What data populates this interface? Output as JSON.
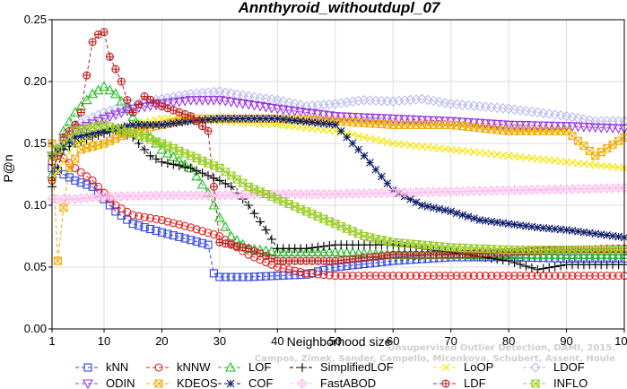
{
  "chart_data": {
    "type": "line",
    "title": "Annthyroid_withoutdupl_07",
    "xlabel": "Neighborhood size",
    "ylabel": "P@n",
    "xlim": [
      1,
      100
    ],
    "ylim": [
      0,
      0.25
    ],
    "xticks": [
      1,
      10,
      20,
      30,
      40,
      50,
      60,
      70,
      80,
      90,
      100
    ],
    "yticks": [
      0.0,
      0.05,
      0.1,
      0.15,
      0.2,
      0.25
    ],
    "xtick_labels": [
      "1",
      "10",
      "20",
      "30",
      "40",
      "50",
      "60",
      "70",
      "80",
      "90",
      "100"
    ],
    "ytick_labels": [
      "0.00",
      "0.05",
      "0.10",
      "0.15",
      "0.20",
      "0.25"
    ],
    "grid": true,
    "legend_position": "bottom",
    "series": [
      {
        "name": "kNN",
        "color": "#3344dd",
        "marker": "square",
        "dash": "4,3",
        "x": [
          1,
          2,
          3,
          5,
          8,
          10,
          12,
          15,
          20,
          25,
          28,
          29,
          30,
          35,
          40,
          45,
          50,
          60,
          70,
          80,
          90,
          100
        ],
        "values": [
          0.13,
          0.128,
          0.125,
          0.12,
          0.115,
          0.105,
          0.095,
          0.085,
          0.078,
          0.072,
          0.068,
          0.045,
          0.042,
          0.042,
          0.043,
          0.044,
          0.05,
          0.055,
          0.058,
          0.058,
          0.057,
          0.057
        ]
      },
      {
        "name": "kNNW",
        "color": "#dd2222",
        "marker": "circle",
        "dash": "4,3",
        "x": [
          1,
          2,
          3,
          5,
          8,
          10,
          12,
          15,
          20,
          25,
          30,
          35,
          40,
          45,
          50,
          60,
          70,
          80,
          90,
          100
        ],
        "values": [
          0.135,
          0.14,
          0.138,
          0.13,
          0.12,
          0.11,
          0.1,
          0.092,
          0.088,
          0.082,
          0.075,
          0.06,
          0.05,
          0.045,
          0.043,
          0.043,
          0.043,
          0.043,
          0.043,
          0.043
        ]
      },
      {
        "name": "LOF",
        "color": "#22bb22",
        "marker": "triangle",
        "dash": "4,3",
        "x": [
          1,
          2,
          3,
          5,
          8,
          10,
          12,
          14,
          16,
          18,
          20,
          25,
          28,
          30,
          32,
          35,
          40,
          50,
          60,
          70,
          80,
          90,
          100
        ],
        "values": [
          0.125,
          0.145,
          0.16,
          0.175,
          0.19,
          0.196,
          0.19,
          0.178,
          0.165,
          0.155,
          0.145,
          0.13,
          0.11,
          0.09,
          0.075,
          0.065,
          0.062,
          0.062,
          0.06,
          0.06,
          0.06,
          0.06,
          0.06
        ]
      },
      {
        "name": "SimplifiedLOF",
        "color": "#000000",
        "marker": "plus",
        "dash": "4,3",
        "x": [
          1,
          2,
          3,
          5,
          8,
          10,
          12,
          15,
          18,
          20,
          25,
          30,
          32,
          35,
          38,
          40,
          45,
          50,
          60,
          70,
          80,
          85,
          90,
          100
        ],
        "values": [
          0.115,
          0.13,
          0.145,
          0.15,
          0.155,
          0.158,
          0.16,
          0.155,
          0.14,
          0.135,
          0.13,
          0.12,
          0.115,
          0.1,
          0.08,
          0.065,
          0.065,
          0.068,
          0.068,
          0.062,
          0.055,
          0.048,
          0.052,
          0.052
        ]
      },
      {
        "name": "LoOP",
        "color": "#f5e600",
        "marker": "x",
        "dash": "4,3",
        "x": [
          1,
          5,
          10,
          15,
          20,
          25,
          30,
          40,
          50,
          60,
          70,
          80,
          90,
          100
        ],
        "values": [
          0.12,
          0.15,
          0.16,
          0.165,
          0.17,
          0.17,
          0.168,
          0.165,
          0.16,
          0.15,
          0.145,
          0.14,
          0.135,
          0.13
        ]
      },
      {
        "name": "LDOF",
        "color": "#bbbbf0",
        "marker": "diamond",
        "dash": "4,3",
        "x": [
          1,
          5,
          10,
          15,
          20,
          25,
          30,
          35,
          40,
          45,
          50,
          55,
          60,
          65,
          70,
          75,
          80,
          85,
          90,
          95,
          100
        ],
        "values": [
          0.14,
          0.165,
          0.175,
          0.182,
          0.186,
          0.19,
          0.192,
          0.188,
          0.185,
          0.18,
          0.182,
          0.185,
          0.184,
          0.186,
          0.182,
          0.18,
          0.178,
          0.175,
          0.172,
          0.168,
          0.168
        ]
      },
      {
        "name": "ODIN",
        "color": "#9933dd",
        "marker": "triangle-down",
        "dash": "4,3",
        "x": [
          1,
          5,
          10,
          15,
          20,
          25,
          30,
          40,
          50,
          60,
          70,
          80,
          90,
          100
        ],
        "values": [
          0.14,
          0.16,
          0.17,
          0.178,
          0.182,
          0.185,
          0.185,
          0.178,
          0.172,
          0.17,
          0.168,
          0.165,
          0.164,
          0.162
        ]
      },
      {
        "name": "KDEOS",
        "color": "#eeaa00",
        "marker": "square-x",
        "dash": "4,3",
        "x": [
          1,
          2,
          3,
          4,
          6,
          10,
          15,
          20,
          25,
          30,
          40,
          50,
          60,
          70,
          80,
          90,
          95,
          100
        ],
        "values": [
          0.15,
          0.055,
          0.098,
          0.13,
          0.145,
          0.15,
          0.16,
          0.165,
          0.17,
          0.17,
          0.17,
          0.168,
          0.165,
          0.165,
          0.16,
          0.16,
          0.14,
          0.155
        ]
      },
      {
        "name": "COF",
        "color": "#0a1a66",
        "marker": "star",
        "dash": "4,3",
        "x": [
          1,
          5,
          10,
          15,
          20,
          25,
          30,
          40,
          50,
          55,
          60,
          65,
          70,
          75,
          80,
          85,
          90,
          95,
          100
        ],
        "values": [
          0.14,
          0.155,
          0.16,
          0.165,
          0.165,
          0.168,
          0.17,
          0.17,
          0.165,
          0.14,
          0.112,
          0.1,
          0.095,
          0.088,
          0.085,
          0.082,
          0.08,
          0.077,
          0.074
        ]
      },
      {
        "name": "FastABOD",
        "color": "#ffbbee",
        "marker": "diamond-plus",
        "dash": "4,3",
        "x": [
          1,
          5,
          10,
          20,
          30,
          40,
          50,
          60,
          70,
          80,
          90,
          100
        ],
        "values": [
          0.105,
          0.105,
          0.107,
          0.108,
          0.108,
          0.109,
          0.109,
          0.11,
          0.111,
          0.112,
          0.113,
          0.114
        ]
      },
      {
        "name": "LDF",
        "color": "#bb2222",
        "marker": "circle-plus",
        "dash": "4,3",
        "x": [
          1,
          2,
          3,
          4,
          5,
          6,
          7,
          8,
          9,
          10,
          11,
          12,
          13,
          14,
          15,
          17,
          20,
          25,
          28,
          30,
          35,
          40,
          50,
          60,
          70,
          80,
          90,
          100
        ],
        "values": [
          0.12,
          0.14,
          0.155,
          0.16,
          0.165,
          0.175,
          0.205,
          0.232,
          0.238,
          0.24,
          0.22,
          0.21,
          0.2,
          0.185,
          0.175,
          0.188,
          0.18,
          0.172,
          0.16,
          0.07,
          0.065,
          0.055,
          0.055,
          0.06,
          0.06,
          0.062,
          0.064,
          0.065
        ]
      },
      {
        "name": "INFLO",
        "color": "#99cc22",
        "marker": "hourglass",
        "dash": "4,3",
        "x": [
          1,
          5,
          10,
          15,
          20,
          25,
          30,
          35,
          40,
          45,
          50,
          55,
          60,
          70,
          80,
          90,
          100
        ],
        "values": [
          0.14,
          0.16,
          0.165,
          0.158,
          0.15,
          0.14,
          0.13,
          0.115,
          0.105,
          0.095,
          0.085,
          0.075,
          0.07,
          0.066,
          0.064,
          0.064,
          0.064
        ]
      }
    ],
    "annotation": {
      "line1": "Unsupervised Outlier Detection, DAMI, 2015.",
      "line2": "Campos, Zimek, Sander, Campello, Micenkova, Schubert, Assent, Houle"
    }
  }
}
